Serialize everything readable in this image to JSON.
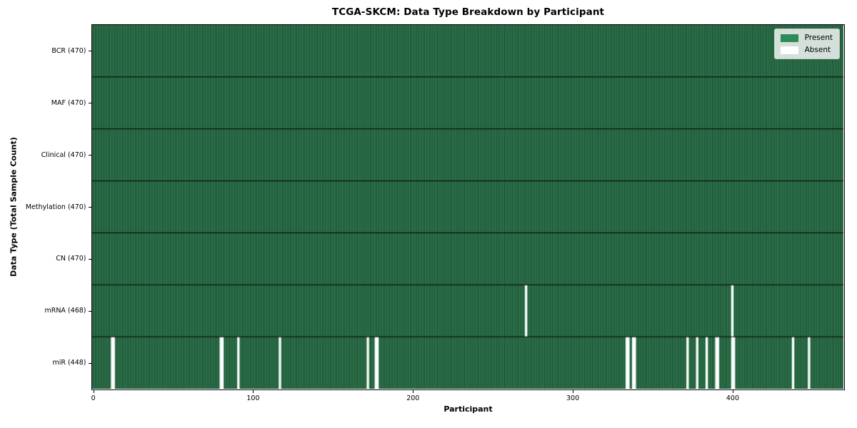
{
  "chart_data": {
    "type": "heatmap",
    "title": "TCGA-SKCM: Data Type Breakdown by Participant",
    "xlabel": "Participant",
    "ylabel": "Data Type (Total Sample Count)",
    "n_participants": 470,
    "x_ticks": [
      0,
      100,
      200,
      300,
      400
    ],
    "legend_position": "upper right",
    "grid": false,
    "legend": [
      {
        "label": "Present",
        "color": "#2e8b57"
      },
      {
        "label": "Absent",
        "color": "#ffffff"
      }
    ],
    "rows": [
      {
        "label": "BCR (470)",
        "total": 470,
        "absent_participants": []
      },
      {
        "label": "MAF (470)",
        "total": 470,
        "absent_participants": []
      },
      {
        "label": "Clinical (470)",
        "total": 470,
        "absent_participants": []
      },
      {
        "label": "Methylation (470)",
        "total": 470,
        "absent_participants": []
      },
      {
        "label": "CN (470)",
        "total": 470,
        "absent_participants": []
      },
      {
        "label": "mRNA (468)",
        "total": 468,
        "absent_participants": [
          271,
          400
        ]
      },
      {
        "label": "miR (448)",
        "total": 448,
        "absent_participants": [
          12,
          13,
          80,
          81,
          91,
          117,
          172,
          177,
          178,
          334,
          335,
          338,
          339,
          372,
          378,
          384,
          390,
          391,
          400,
          401,
          438,
          448
        ]
      }
    ],
    "colors": {
      "present_fill": "#35905e",
      "present_legend": "#2e8b57",
      "bar_edge": "#152a1c",
      "absent": "#ffffff",
      "row_divider": "#000000",
      "axis": "#000000"
    }
  }
}
